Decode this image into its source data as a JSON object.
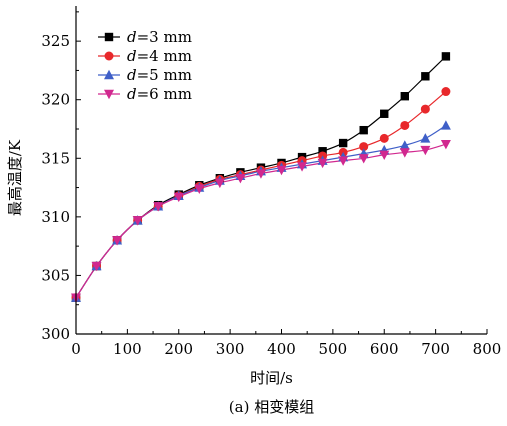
{
  "chart_data": {
    "type": "line",
    "xlabel": "时间/s",
    "ylabel": "最高温度/K",
    "caption": "(a) 相变模组",
    "xlim": [
      0,
      800
    ],
    "ylim": [
      300,
      328
    ],
    "xticks": [
      "0",
      "100",
      "200",
      "300",
      "400",
      "500",
      "600",
      "700",
      "800"
    ],
    "yticks": [
      "300",
      "305",
      "310",
      "315",
      "320",
      "325"
    ],
    "legend_position": "top-left",
    "x": [
      0,
      40,
      80,
      120,
      160,
      200,
      240,
      280,
      320,
      360,
      400,
      440,
      480,
      520,
      560,
      600,
      640,
      680,
      720
    ],
    "series": [
      {
        "name": "d=3 mm",
        "legend_var": "d",
        "legend_rest": "=3 mm",
        "marker": "square",
        "color": "#000000",
        "values": [
          303.1,
          305.8,
          308.0,
          309.7,
          311.0,
          311.9,
          312.7,
          313.3,
          313.8,
          314.2,
          314.6,
          315.1,
          315.6,
          316.3,
          317.4,
          318.8,
          320.3,
          322.0,
          323.7
        ]
      },
      {
        "name": "d=4 mm",
        "legend_var": "d",
        "legend_rest": "=4 mm",
        "marker": "circle",
        "color": "#e8282b",
        "values": [
          303.1,
          305.8,
          308.0,
          309.7,
          310.9,
          311.8,
          312.6,
          313.2,
          313.6,
          314.0,
          314.4,
          314.8,
          315.2,
          315.5,
          316.0,
          316.7,
          317.8,
          319.2,
          320.7
        ]
      },
      {
        "name": "d=5 mm",
        "legend_var": "d",
        "legend_rest": "=5 mm",
        "marker": "triangle-up",
        "color": "#3f5fc8",
        "values": [
          303.1,
          305.8,
          308.0,
          309.7,
          310.9,
          311.8,
          312.5,
          313.1,
          313.5,
          313.9,
          314.2,
          314.5,
          314.8,
          315.1,
          315.4,
          315.7,
          316.1,
          316.7,
          317.8
        ]
      },
      {
        "name": "d=6 mm",
        "legend_var": "d",
        "legend_rest": "=6 mm",
        "marker": "triangle-down",
        "color": "#d1288f",
        "values": [
          303.1,
          305.8,
          308.0,
          309.7,
          310.9,
          311.7,
          312.4,
          312.9,
          313.3,
          313.7,
          314.0,
          314.3,
          314.6,
          314.8,
          315.0,
          315.3,
          315.5,
          315.7,
          316.2
        ]
      }
    ]
  }
}
